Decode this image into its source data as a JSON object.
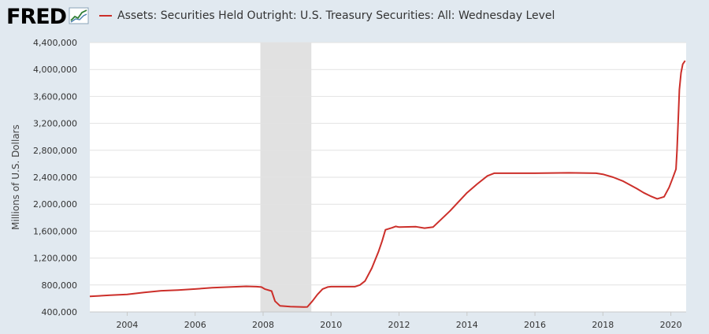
{
  "brand": {
    "logo_text": "FRED",
    "logo_mark": "fred-chart-icon"
  },
  "colors": {
    "series": "#cc2f2a",
    "recession": "#e1e1e1",
    "grid": "#e2e2e2",
    "plot_bg": "#ffffff",
    "page_bg": "#e1e9f0"
  },
  "chart_data": {
    "type": "line",
    "title": "",
    "ylabel": "Millions of U.S. Dollars",
    "xlabel": "",
    "xlim": [
      2002.9,
      2020.45
    ],
    "ylim": [
      400000,
      4400000
    ],
    "x_ticks": [
      2004,
      2006,
      2008,
      2010,
      2012,
      2014,
      2016,
      2018,
      2020
    ],
    "x_tick_labels": [
      "2004",
      "2006",
      "2008",
      "2010",
      "2012",
      "2014",
      "2016",
      "2018",
      "2020"
    ],
    "y_ticks": [
      400000,
      800000,
      1200000,
      1600000,
      2000000,
      2400000,
      2800000,
      3200000,
      3600000,
      4000000,
      4400000
    ],
    "y_tick_labels": [
      "400,000",
      "800,000",
      "1,200,000",
      "1,600,000",
      "2,000,000",
      "2,400,000",
      "2,800,000",
      "3,200,000",
      "3,600,000",
      "4,000,000",
      "4,400,000"
    ],
    "grid": "horizontal",
    "legend": "top-left",
    "recessions": [
      {
        "start": 2007.92,
        "end": 2009.42
      }
    ],
    "series": [
      {
        "name": "Assets: Securities Held Outright: U.S. Treasury Securities: All: Wednesday Level",
        "points": [
          [
            2002.9,
            630000
          ],
          [
            2003.5,
            648000
          ],
          [
            2004.0,
            660000
          ],
          [
            2004.5,
            690000
          ],
          [
            2005.0,
            715000
          ],
          [
            2005.5,
            725000
          ],
          [
            2006.0,
            740000
          ],
          [
            2006.5,
            760000
          ],
          [
            2007.0,
            770000
          ],
          [
            2007.5,
            780000
          ],
          [
            2007.8,
            775000
          ],
          [
            2007.95,
            770000
          ],
          [
            2008.05,
            740000
          ],
          [
            2008.25,
            710000
          ],
          [
            2008.35,
            560000
          ],
          [
            2008.5,
            490000
          ],
          [
            2008.8,
            478000
          ],
          [
            2009.0,
            476000
          ],
          [
            2009.2,
            474000
          ],
          [
            2009.3,
            475000
          ],
          [
            2009.45,
            560000
          ],
          [
            2009.6,
            660000
          ],
          [
            2009.75,
            740000
          ],
          [
            2009.9,
            770000
          ],
          [
            2010.0,
            776000
          ],
          [
            2010.5,
            776000
          ],
          [
            2010.7,
            776000
          ],
          [
            2010.85,
            800000
          ],
          [
            2011.0,
            860000
          ],
          [
            2011.2,
            1050000
          ],
          [
            2011.4,
            1300000
          ],
          [
            2011.5,
            1450000
          ],
          [
            2011.6,
            1620000
          ],
          [
            2011.8,
            1650000
          ],
          [
            2011.9,
            1670000
          ],
          [
            2012.0,
            1660000
          ],
          [
            2012.5,
            1665000
          ],
          [
            2012.75,
            1645000
          ],
          [
            2013.0,
            1660000
          ],
          [
            2013.5,
            1900000
          ],
          [
            2014.0,
            2170000
          ],
          [
            2014.3,
            2300000
          ],
          [
            2014.6,
            2420000
          ],
          [
            2014.8,
            2460000
          ],
          [
            2015.0,
            2460000
          ],
          [
            2016.0,
            2460000
          ],
          [
            2017.0,
            2465000
          ],
          [
            2017.8,
            2460000
          ],
          [
            2018.0,
            2445000
          ],
          [
            2018.3,
            2400000
          ],
          [
            2018.6,
            2340000
          ],
          [
            2019.0,
            2230000
          ],
          [
            2019.2,
            2170000
          ],
          [
            2019.4,
            2120000
          ],
          [
            2019.6,
            2080000
          ],
          [
            2019.8,
            2110000
          ],
          [
            2019.95,
            2250000
          ],
          [
            2020.05,
            2380000
          ],
          [
            2020.15,
            2520000
          ],
          [
            2020.18,
            2800000
          ],
          [
            2020.22,
            3300000
          ],
          [
            2020.25,
            3700000
          ],
          [
            2020.3,
            3950000
          ],
          [
            2020.35,
            4080000
          ],
          [
            2020.42,
            4130000
          ]
        ]
      }
    ]
  }
}
